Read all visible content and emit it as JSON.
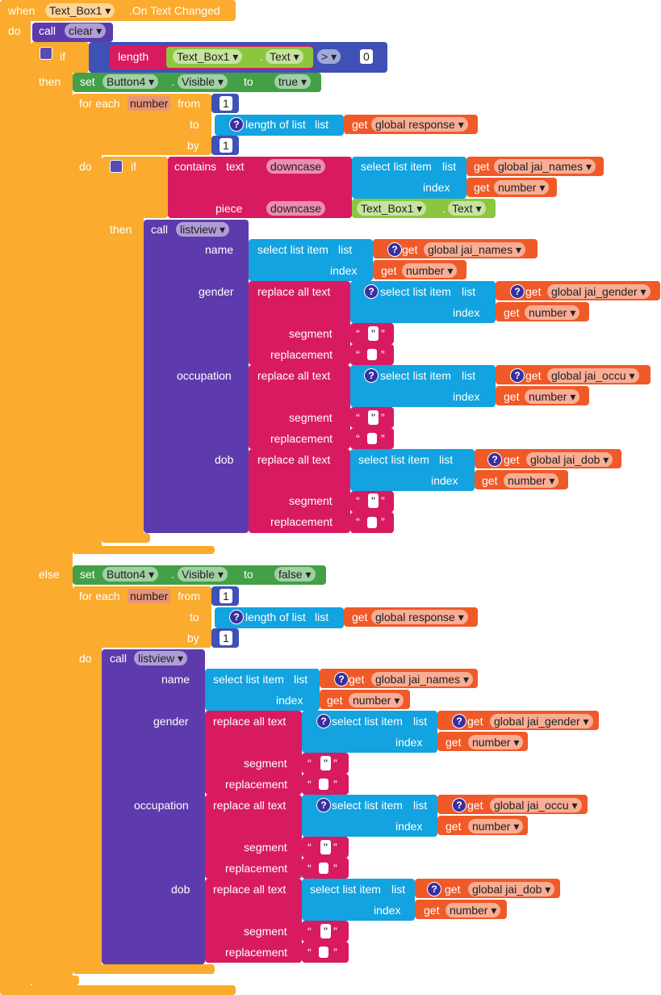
{
  "rows": [
    [
      "when",
      "Text_Box1 ▾",
      ".On Text Changed"
    ],
    [
      "do",
      "call",
      "clear ▾"
    ],
    [
      "if",
      "length",
      "Text_Box1 ▾",
      ".",
      "Text ▾",
      "> ▾",
      "0"
    ],
    [
      "then",
      "set",
      "Button4 ▾",
      ".",
      "Visible ▾",
      "to",
      "true ▾"
    ],
    [
      "for each",
      "number",
      "from",
      "1"
    ],
    [
      "to",
      "?",
      "length of list",
      "list",
      "get",
      "global response ▾"
    ],
    [
      "by",
      "1"
    ],
    [
      "do",
      "if",
      "contains",
      "text",
      "downcase",
      "select list item",
      "list",
      "get",
      "global jai_names ▾"
    ],
    [
      "index",
      "get",
      "number ▾"
    ],
    [
      "piece",
      "downcase",
      "Text_Box1 ▾",
      ".",
      "Text ▾"
    ],
    [
      "then",
      "call",
      "listview ▾"
    ],
    [
      "name",
      "select list item",
      "list",
      "?",
      "get",
      "global jai_names ▾"
    ],
    [
      "index",
      "get",
      "number ▾"
    ],
    [
      "gender",
      "replace all text",
      "?",
      "select list item",
      "list",
      "?",
      "get",
      "global jai_gender ▾"
    ],
    [
      "index",
      "get",
      "number ▾"
    ],
    [
      "segment",
      "“",
      "\"",
      "”"
    ],
    [
      "replacement",
      "“",
      "”"
    ],
    [
      "occupation",
      "replace all text",
      "?",
      "select list item",
      "list",
      "?",
      "get",
      "global jai_occu ▾"
    ],
    [
      "index",
      "get",
      "number ▾"
    ],
    [
      "segment",
      "“",
      "\"",
      "”"
    ],
    [
      "replacement",
      "“",
      "”"
    ],
    [
      "dob",
      "replace all text",
      "select list item",
      "list",
      "?",
      "get",
      "global jai_dob ▾"
    ],
    [
      "index",
      "get",
      "number ▾"
    ],
    [
      "segment",
      "“",
      "\"",
      "”"
    ],
    [
      "replacement",
      "“",
      "”"
    ],
    [
      "else",
      "set",
      "Button4 ▾",
      ".",
      "Visible ▾",
      "to",
      "false ▾"
    ],
    [
      "for each",
      "number",
      "from",
      "1"
    ],
    [
      "to",
      "?",
      "length of list",
      "list",
      "get",
      "global response ▾"
    ],
    [
      "by",
      "1"
    ],
    [
      "do",
      "call",
      "listview ▾"
    ],
    [
      "name",
      "select list item",
      "list",
      "?",
      "get",
      "global jai_names ▾"
    ],
    [
      "index",
      "get",
      "number ▾"
    ],
    [
      "gender",
      "replace all text",
      "?",
      "select list item",
      "list",
      "?",
      "get",
      "global jai_gender ▾"
    ],
    [
      "index",
      "get",
      "number ▾"
    ],
    [
      "segment",
      "“",
      "\"",
      "”"
    ],
    [
      "replacement",
      "“",
      "”"
    ],
    [
      "occupation",
      "replace all text",
      "?",
      "select list item",
      "list",
      "?",
      "get",
      "global jai_occu ▾"
    ],
    [
      "index",
      "get",
      "number ▾"
    ],
    [
      "segment",
      "“",
      "\"",
      "”"
    ],
    [
      "replacement",
      "“",
      "”"
    ],
    [
      "dob",
      "replace all text",
      "select list item",
      "list",
      "?",
      "get",
      "global jai_dob ▾"
    ],
    [
      "index",
      "get",
      "number ▾"
    ],
    [
      "segment",
      "“",
      "\"",
      "”"
    ],
    [
      "replacement",
      "“",
      "”"
    ]
  ]
}
